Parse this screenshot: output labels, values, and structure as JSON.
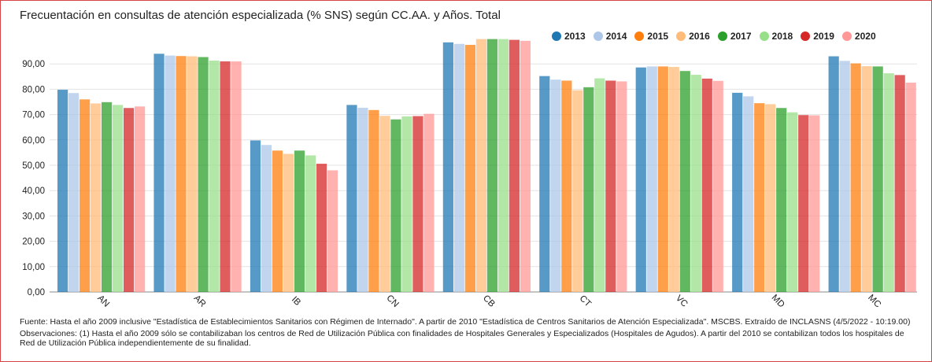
{
  "chart_data": {
    "type": "bar",
    "title": "Frecuentación en consultas de atención especializada (% SNS) según CC.AA. y Años. Total",
    "categories": [
      "AN",
      "AR",
      "IB",
      "CN",
      "CB",
      "CT",
      "VC",
      "MD",
      "MC"
    ],
    "series": [
      {
        "name": "2013",
        "color": "#1f77b4",
        "values": [
          79.8,
          94.0,
          59.8,
          73.8,
          98.5,
          85.2,
          88.6,
          78.6,
          93.0
        ]
      },
      {
        "name": "2014",
        "color": "#aec7e8",
        "values": [
          78.5,
          93.3,
          58.0,
          72.7,
          97.9,
          83.8,
          89.0,
          77.2,
          91.2
        ]
      },
      {
        "name": "2015",
        "color": "#ff7f0e",
        "values": [
          76.0,
          93.1,
          55.8,
          71.8,
          97.5,
          83.4,
          89.0,
          74.5,
          90.2
        ]
      },
      {
        "name": "2016",
        "color": "#ffbb78",
        "values": [
          74.4,
          93.0,
          54.5,
          69.5,
          99.8,
          79.6,
          88.8,
          74.1,
          89.1
        ]
      },
      {
        "name": "2017",
        "color": "#2ca02c",
        "values": [
          74.9,
          92.7,
          55.8,
          68.1,
          99.8,
          80.8,
          87.2,
          72.6,
          89.0
        ]
      },
      {
        "name": "2018",
        "color": "#98df8a",
        "values": [
          73.8,
          91.3,
          53.9,
          69.3,
          99.8,
          84.3,
          85.7,
          70.9,
          86.3
        ]
      },
      {
        "name": "2019",
        "color": "#d62728",
        "values": [
          72.6,
          91.0,
          50.6,
          69.4,
          99.5,
          83.4,
          84.2,
          69.8,
          85.6
        ]
      },
      {
        "name": "2020",
        "color": "#ff9896",
        "values": [
          73.2,
          91.0,
          48.0,
          70.3,
          99.1,
          83.1,
          83.3,
          69.7,
          82.6
        ]
      }
    ],
    "y_ticks": [
      "0,00",
      "10,00",
      "20,00",
      "30,00",
      "40,00",
      "50,00",
      "60,00",
      "70,00",
      "80,00",
      "90,00"
    ],
    "ylim": [
      0,
      100
    ],
    "xlabel": "",
    "ylabel": "",
    "grid": true,
    "legend_position": "top-right"
  },
  "footer": {
    "source": "Fuente: Hasta el año 2009 inclusive \"Estadística de Establecimientos Sanitarios con Régimen de Internado\". A partir de 2010 \"Estadística de Centros Sanitarios de Atención Especializada\". MSCBS. Extraído de INCLASNS (4/5/2022 - 10:19.00)",
    "observations": "Observaciones: (1) Hasta el año 2009 sólo se contabilizaban los centros de Red de Utilización Pública con finalidades de Hospitales Generales y Especializados (Hospitales de Agudos). A partir del 2010 se contabilizan todos los hospitales de Red de Utilización Pública independientemente de su finalidad."
  }
}
